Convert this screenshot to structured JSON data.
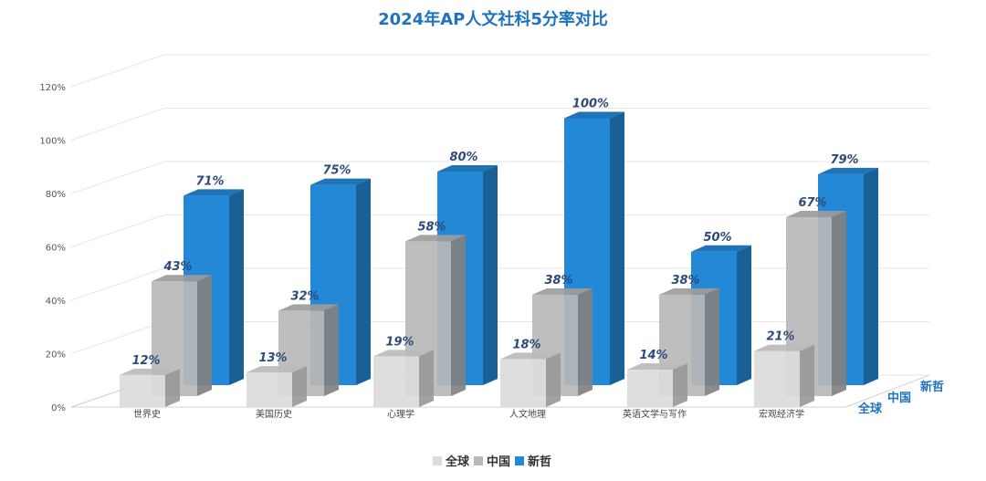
{
  "chart_data": {
    "type": "bar",
    "title": "2024年AP人文社科5分率对比",
    "categories": [
      "世界史",
      "美国历史",
      "心理学",
      "人文地理",
      "英语文学与写作",
      "宏观经济学"
    ],
    "series": [
      {
        "name": "全球",
        "values": [
          12,
          13,
          19,
          18,
          14,
          21
        ],
        "color": "#dcdcdc"
      },
      {
        "name": "中国",
        "values": [
          43,
          32,
          58,
          38,
          38,
          67
        ],
        "color": "#b9b9b9"
      },
      {
        "name": "新哲",
        "values": [
          71,
          75,
          80,
          100,
          50,
          79
        ],
        "color": "#2389d6"
      }
    ],
    "data_labels": [
      [
        "12%",
        "13%",
        "19%",
        "18%",
        "14%",
        "21%"
      ],
      [
        "43%",
        "32%",
        "58%",
        "38%",
        "38%",
        "67%"
      ],
      [
        "71%",
        "75%",
        "80%",
        "100%",
        "50%",
        "79%"
      ]
    ],
    "y_ticks": [
      "0%",
      "20%",
      "40%",
      "60%",
      "80%",
      "100%",
      "120%"
    ],
    "ylim": [
      0,
      120
    ],
    "grid": true,
    "legend_position": "bottom",
    "legend": [
      "全球",
      "中国",
      "新哲"
    ],
    "depth_labels": [
      "全球",
      "中国",
      "新哲"
    ]
  }
}
